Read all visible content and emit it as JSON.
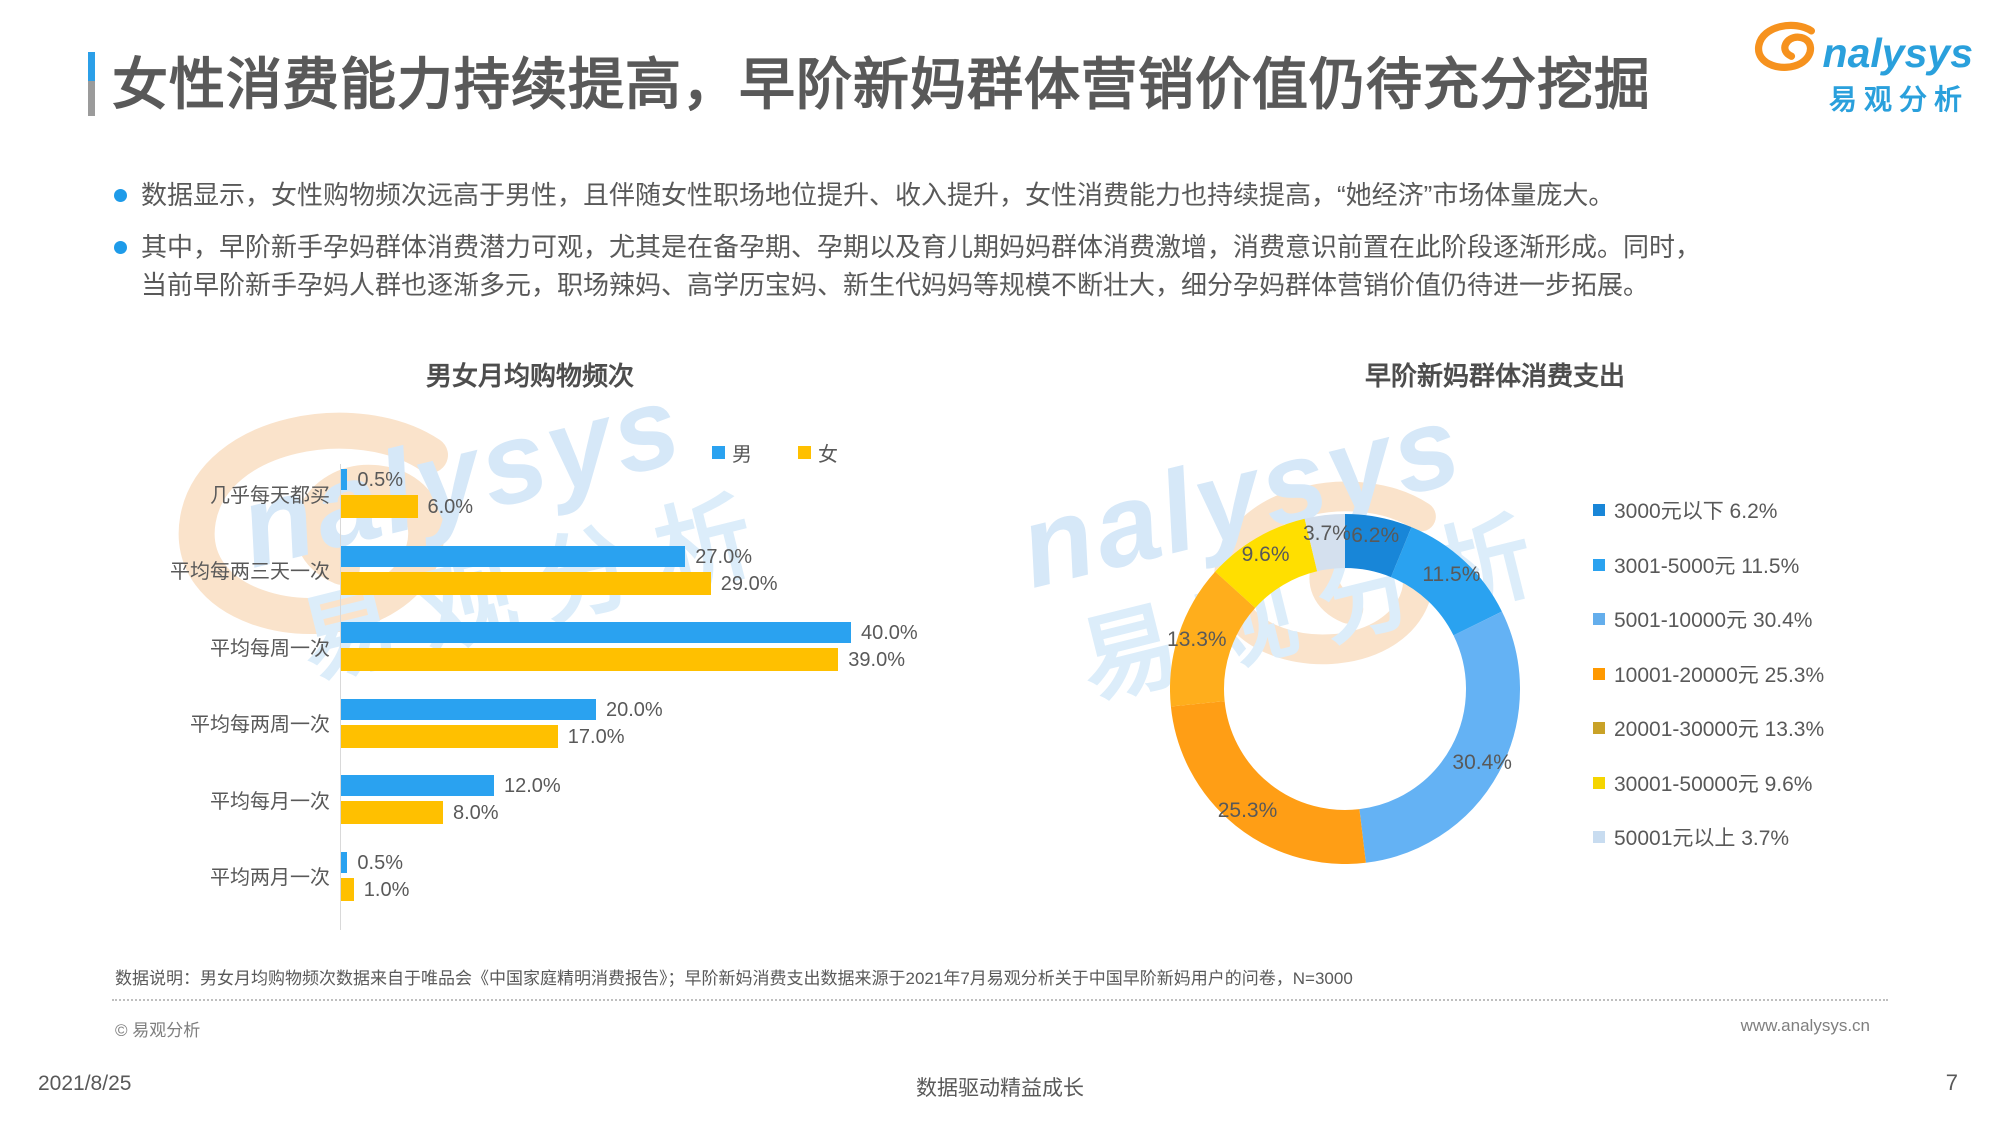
{
  "header": {
    "title": "女性消费能力持续提高，早阶新妈群体营销价值仍待充分挖掘",
    "logo": {
      "en": "analysys",
      "en_tail": "nalysys",
      "cn": "易观分析",
      "blue": "#2AA0DC",
      "orange": "#F6921E"
    }
  },
  "bullets": [
    {
      "lines": [
        "数据显示，女性购物频次远高于男性，且伴随女性职场地位提升、收入提升，女性消费能力也持续提高，“她经济”市场体量庞大。"
      ]
    },
    {
      "lines": [
        "其中，早阶新手孕妈群体消费潜力可观，尤其是在备孕期、孕期以及育儿期妈妈群体消费激增，消费意识前置在此阶段逐渐形成。同时，",
        "当前早阶新手孕妈人群也逐渐多元，职场辣妈、高学历宝妈、新生代妈妈等规模不断壮大，细分孕妈群体营销价值仍待进一步拓展。"
      ]
    }
  ],
  "chart_data": [
    {
      "type": "bar",
      "orientation": "horizontal",
      "title": "男女月均购物频次",
      "categories": [
        "几乎每天都买",
        "平均每两三天一次",
        "平均每周一次",
        "平均每两周一次",
        "平均每月一次",
        "平均两月一次"
      ],
      "series": [
        {
          "name": "男",
          "color": "#2AA2F0",
          "values": [
            0.5,
            27.0,
            40.0,
            20.0,
            12.0,
            0.5
          ]
        },
        {
          "name": "女",
          "color": "#FFC000",
          "values": [
            6.0,
            29.0,
            39.0,
            17.0,
            8.0,
            1.0
          ]
        }
      ],
      "value_suffix": "%",
      "xlim": [
        0,
        45
      ],
      "legend_position": "top-right",
      "grid": false
    },
    {
      "type": "pie",
      "subtype": "donut",
      "title": "早阶新妈群体消费支出",
      "labels": [
        "3000元以下",
        "3001-5000元",
        "5001-10000元",
        "10001-20000元",
        "20001-30000元",
        "30001-50000元",
        "50001元以上"
      ],
      "values": [
        6.2,
        11.5,
        30.4,
        25.3,
        13.3,
        9.6,
        3.7
      ],
      "slice_colors": [
        "#1886D8",
        "#2AA2F0",
        "#64B2F4",
        "#FF9E15",
        "#FFAE1C",
        "#FFDF00",
        "#D4E0EE"
      ],
      "legend_colors": [
        "#1886D8",
        "#2AA2F0",
        "#64AEEC",
        "#FF9900",
        "#C9A227",
        "#F5D500",
        "#C8DCF0"
      ],
      "value_suffix": "%",
      "start_angle_deg": -90,
      "direction": "clockwise",
      "legend_position": "right"
    }
  ],
  "watermark": {
    "en_tail": "nalysys",
    "cn": "易观分析"
  },
  "footer": {
    "note": "数据说明：男女月均购物频次数据来自于唯品会《中国家庭精明消费报告》；早阶新妈消费支出数据来源于2021年7月易观分析关于中国早阶新妈用户的问卷，N=3000",
    "copyright": "© 易观分析",
    "website": "www.analysys.cn",
    "date": "2021/8/25",
    "slogan": "数据驱动精益成长",
    "page": "7"
  }
}
